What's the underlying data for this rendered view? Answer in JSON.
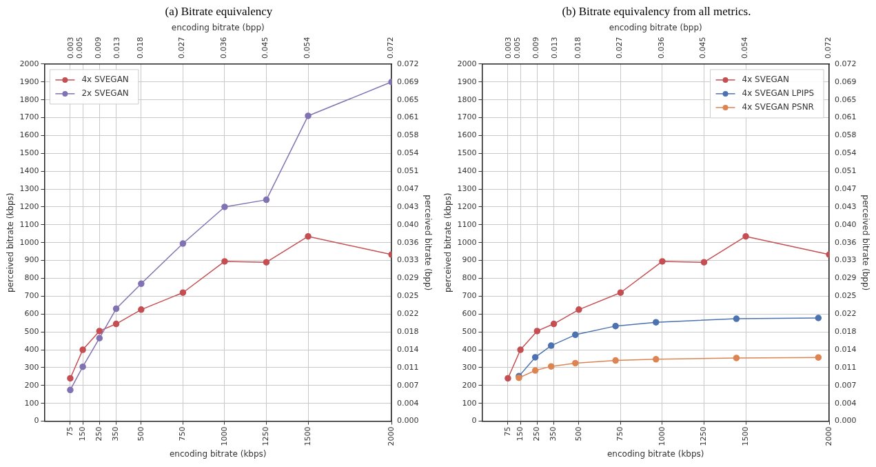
{
  "chart_data": [
    {
      "type": "line",
      "title": "(a) Bitrate equivalency",
      "xlabel": "encoding bitrate (kbps)",
      "x2label": "encoding bitrate (bpp)",
      "ylabel": "perceived bitrate (kbps)",
      "y2label": "perceived bitrate (bpp)",
      "xlim": [
        -80,
        2000
      ],
      "xticks": [
        75,
        150,
        250,
        350,
        500,
        750,
        1000,
        1250,
        1500,
        2000
      ],
      "x2lim": [
        -0.00288,
        0.072
      ],
      "x2ticks": [
        0.003,
        0.005,
        0.009,
        0.013,
        0.018,
        0.027,
        0.036,
        0.045,
        0.054,
        0.072
      ],
      "ylim": [
        0,
        2000
      ],
      "yticks": [
        0,
        100,
        200,
        300,
        400,
        500,
        600,
        700,
        800,
        900,
        1000,
        1100,
        1200,
        1300,
        1400,
        1500,
        1600,
        1700,
        1800,
        1900,
        2000
      ],
      "y2lim": [
        0,
        0.07228
      ],
      "y2ticks": [
        {
          "value": 0,
          "label": "0.000"
        },
        {
          "value": 0.003614,
          "label": "0.004"
        },
        {
          "value": 0.007228,
          "label": "0.007"
        },
        {
          "value": 0.010842,
          "label": "0.011"
        },
        {
          "value": 0.014456,
          "label": "0.014"
        },
        {
          "value": 0.01807,
          "label": "0.018"
        },
        {
          "value": 0.021684,
          "label": "0.022"
        },
        {
          "value": 0.025298,
          "label": "0.025"
        },
        {
          "value": 0.028912,
          "label": "0.029"
        },
        {
          "value": 0.032526,
          "label": "0.033"
        },
        {
          "value": 0.03614,
          "label": "0.036"
        },
        {
          "value": 0.039754,
          "label": "0.040"
        },
        {
          "value": 0.043368,
          "label": "0.043"
        },
        {
          "value": 0.046982,
          "label": "0.047"
        },
        {
          "value": 0.050596,
          "label": "0.051"
        },
        {
          "value": 0.05421,
          "label": "0.054"
        },
        {
          "value": 0.057824,
          "label": "0.058"
        },
        {
          "value": 0.061438,
          "label": "0.061"
        },
        {
          "value": 0.065052,
          "label": "0.065"
        },
        {
          "value": 0.068666,
          "label": "0.069"
        },
        {
          "value": 0.07228,
          "label": "0.072"
        }
      ],
      "grid": true,
      "legend": "top left",
      "marker": "circle",
      "series": [
        {
          "name": "4x SVEGAN",
          "color": "#c44e52",
          "x": [
            75,
            150,
            250,
            350,
            500,
            750,
            1000,
            1250,
            1500,
            2000
          ],
          "values": [
            240,
            400,
            505,
            545,
            625,
            720,
            895,
            890,
            1035,
            933
          ]
        },
        {
          "name": "2x SVEGAN",
          "color": "#8172b3",
          "x": [
            75,
            150,
            250,
            350,
            500,
            750,
            1000,
            1250,
            1500,
            2000
          ],
          "values": [
            175,
            305,
            465,
            630,
            770,
            995,
            1200,
            1240,
            1710,
            1900
          ]
        }
      ]
    },
    {
      "type": "line",
      "title": "(b) Bitrate equivalency from all metrics.",
      "xlabel": "encoding bitrate (kbps)",
      "x2label": "encoding bitrate (bpp)",
      "ylabel": "perceived bitrate (kbps)",
      "y2label": "perceived bitrate (bpp)",
      "xlim": [
        -80,
        2000
      ],
      "xticks": [
        75,
        150,
        250,
        350,
        500,
        750,
        1000,
        1250,
        1500,
        2000
      ],
      "x2lim": [
        -0.00288,
        0.072
      ],
      "x2ticks": [
        0.003,
        0.005,
        0.009,
        0.013,
        0.018,
        0.027,
        0.036,
        0.045,
        0.054,
        0.072
      ],
      "ylim": [
        0,
        2000
      ],
      "yticks": [
        0,
        100,
        200,
        300,
        400,
        500,
        600,
        700,
        800,
        900,
        1000,
        1100,
        1200,
        1300,
        1400,
        1500,
        1600,
        1700,
        1800,
        1900,
        2000
      ],
      "y2lim": [
        0,
        0.07228
      ],
      "y2ticks": [
        {
          "value": 0,
          "label": "0.000"
        },
        {
          "value": 0.003614,
          "label": "0.004"
        },
        {
          "value": 0.007228,
          "label": "0.007"
        },
        {
          "value": 0.010842,
          "label": "0.011"
        },
        {
          "value": 0.014456,
          "label": "0.014"
        },
        {
          "value": 0.01807,
          "label": "0.018"
        },
        {
          "value": 0.021684,
          "label": "0.022"
        },
        {
          "value": 0.025298,
          "label": "0.025"
        },
        {
          "value": 0.028912,
          "label": "0.029"
        },
        {
          "value": 0.032526,
          "label": "0.033"
        },
        {
          "value": 0.03614,
          "label": "0.036"
        },
        {
          "value": 0.039754,
          "label": "0.040"
        },
        {
          "value": 0.043368,
          "label": "0.043"
        },
        {
          "value": 0.046982,
          "label": "0.047"
        },
        {
          "value": 0.050596,
          "label": "0.051"
        },
        {
          "value": 0.05421,
          "label": "0.054"
        },
        {
          "value": 0.057824,
          "label": "0.058"
        },
        {
          "value": 0.061438,
          "label": "0.061"
        },
        {
          "value": 0.065052,
          "label": "0.065"
        },
        {
          "value": 0.068666,
          "label": "0.069"
        },
        {
          "value": 0.07228,
          "label": "0.072"
        }
      ],
      "grid": true,
      "legend": "top right",
      "marker": "circle",
      "series": [
        {
          "name": "4x SVEGAN",
          "color": "#c44e52",
          "x": [
            75,
            150,
            250,
            350,
            500,
            750,
            1000,
            1250,
            1500,
            2000
          ],
          "values": [
            240,
            400,
            505,
            545,
            625,
            720,
            895,
            890,
            1035,
            933
          ]
        },
        {
          "name": "4x SVEGAN LPIPS",
          "color": "#4c72b0",
          "x": [
            141,
            239,
            334,
            479,
            720,
            962,
            1444,
            1935
          ],
          "values": [
            252,
            358,
            423,
            484,
            533,
            554,
            574,
            578
          ]
        },
        {
          "name": "4x SVEGAN PSNR",
          "color": "#dd8452",
          "x": [
            141,
            239,
            334,
            479,
            720,
            962,
            1444,
            1935
          ],
          "values": [
            243,
            284,
            307,
            325,
            340,
            347,
            354,
            357
          ]
        }
      ]
    }
  ]
}
